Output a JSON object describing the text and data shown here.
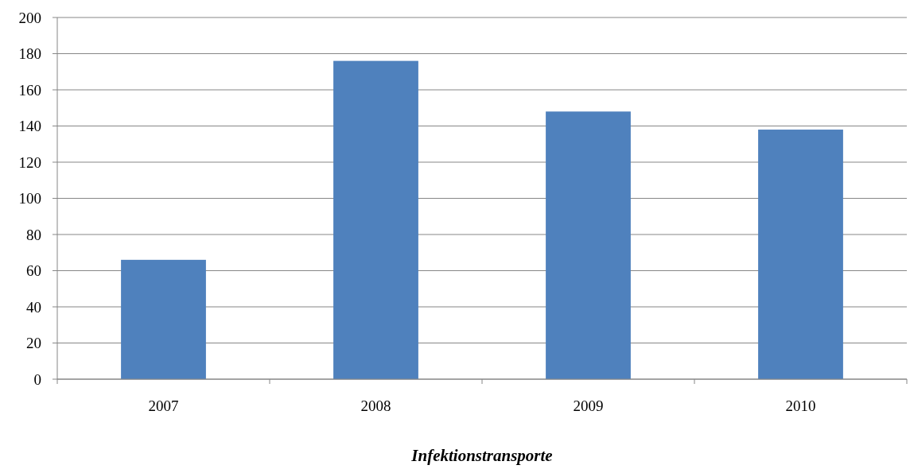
{
  "chart_data": {
    "type": "bar",
    "xlabel": "Infektionstransporte",
    "categories": [
      "2007",
      "2008",
      "2009",
      "2010"
    ],
    "values": [
      66,
      176,
      148,
      138
    ],
    "color": "#4f81bd",
    "ylim": [
      0,
      200
    ],
    "yticks": [
      0,
      20,
      40,
      60,
      80,
      100,
      120,
      140,
      160,
      180,
      200
    ],
    "grid": "y"
  }
}
